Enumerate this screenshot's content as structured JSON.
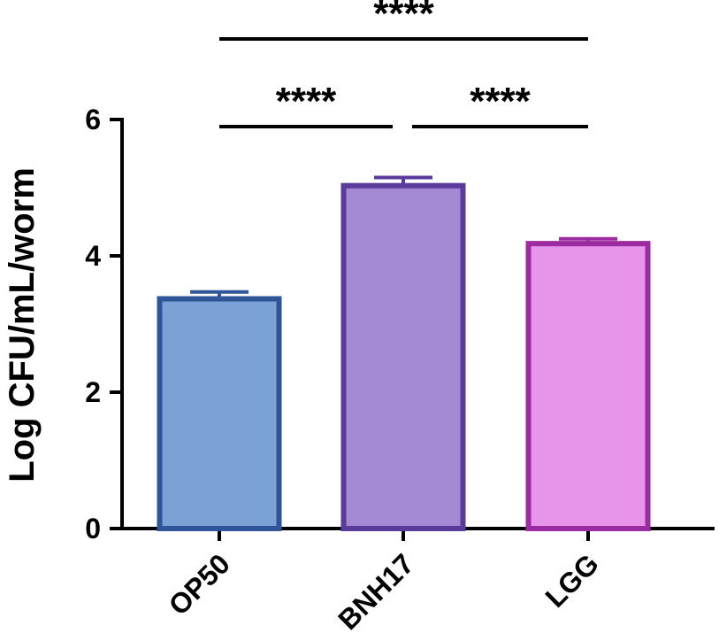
{
  "chart_data": {
    "type": "bar",
    "title": "",
    "xlabel": "",
    "ylabel": "Log CFU/mL/worm",
    "ylim": [
      0,
      6
    ],
    "yticks": [
      0,
      2,
      4,
      6
    ],
    "categories": [
      "OP50",
      "BNH17",
      "LGG"
    ],
    "values": [
      3.37,
      5.03,
      4.18
    ],
    "errors": [
      0.1,
      0.12,
      0.07
    ],
    "fill_colors": [
      "#7BA2D6",
      "#A48AD4",
      "#E794EA"
    ],
    "edge_colors": [
      "#2E5597",
      "#5A3A9A",
      "#9C2AA0"
    ],
    "grid": false,
    "legend": "none",
    "significance": [
      {
        "from": "OP50",
        "to": "BNH17",
        "label": "****"
      },
      {
        "from": "BNH17",
        "to": "LGG",
        "label": "****"
      },
      {
        "from": "OP50",
        "to": "LGG",
        "label": "****"
      }
    ]
  }
}
